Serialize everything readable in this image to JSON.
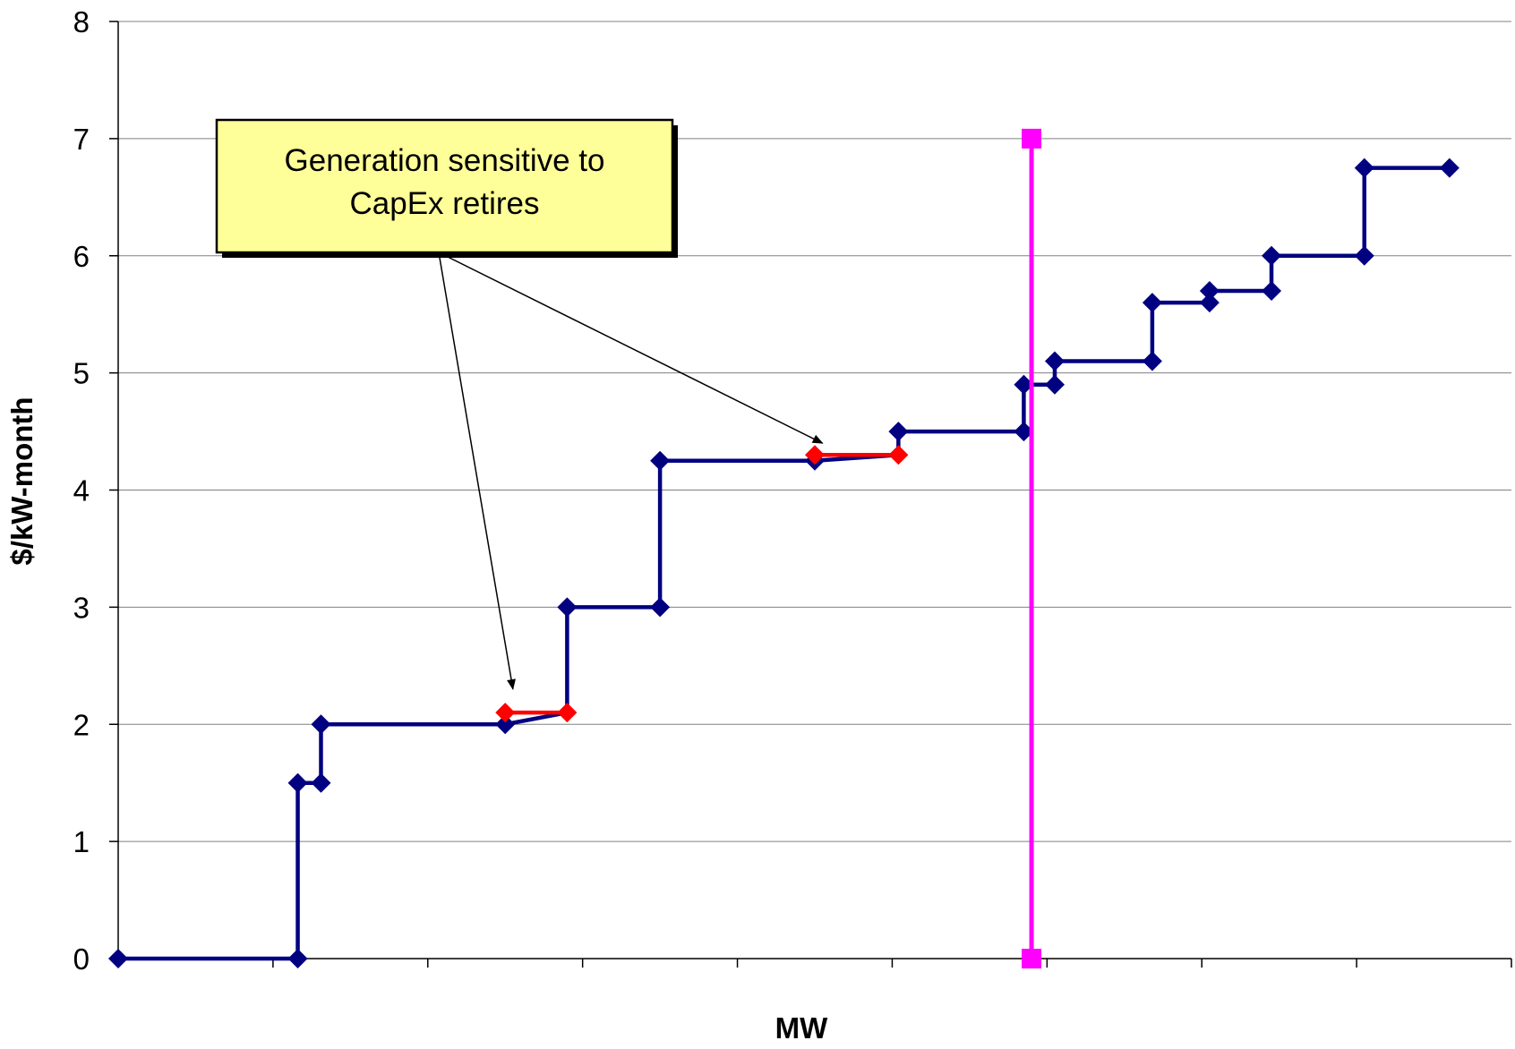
{
  "chart_data": {
    "type": "line",
    "title": "",
    "xlabel": "MW",
    "ylabel": "$/kW-month",
    "ylim": [
      0,
      8
    ],
    "xlim": [
      0,
      9
    ],
    "yticks": [
      0,
      1,
      2,
      3,
      4,
      5,
      6,
      7,
      8
    ],
    "xticks": [
      0,
      1,
      2,
      3,
      4,
      5,
      6,
      7,
      8,
      9
    ],
    "grid": "horizontal",
    "colors": {
      "supply": "#000080",
      "retire": "#ff0000",
      "demand": "#ff00ff",
      "callout_fill": "#ffff99"
    },
    "series": [
      {
        "role": "supply-curve",
        "color": "#000080",
        "x": [
          0,
          1.16,
          1.16,
          1.31,
          1.31,
          2.5,
          2.9,
          2.9,
          3.5,
          3.5,
          4.5,
          5.04,
          5.04,
          5.85,
          5.85,
          6.05,
          6.05,
          6.68,
          6.68,
          7.05,
          7.05,
          7.45,
          7.45,
          8.05,
          8.05,
          8.6
        ],
        "y": [
          0,
          0,
          1.5,
          1.5,
          2,
          2,
          2.1,
          3,
          3,
          4.25,
          4.25,
          4.3,
          4.5,
          4.5,
          4.9,
          4.9,
          5.1,
          5.1,
          5.6,
          5.6,
          5.7,
          5.7,
          6,
          6,
          6.75,
          6.75
        ],
        "markers": [
          0,
          1,
          2,
          3,
          4,
          5,
          7,
          8,
          9,
          10,
          12,
          13,
          14,
          15,
          16,
          17,
          18,
          19,
          20,
          21,
          22,
          23,
          24,
          25
        ]
      },
      {
        "role": "retire-segment-1",
        "color": "#ff0000",
        "x": [
          2.5,
          2.9
        ],
        "y": [
          2.1,
          2.1
        ],
        "markers": [
          0,
          1
        ]
      },
      {
        "role": "retire-segment-2",
        "color": "#ff0000",
        "x": [
          4.5,
          5.04
        ],
        "y": [
          4.3,
          4.3
        ],
        "markers": [
          0,
          1
        ]
      },
      {
        "role": "demand-line",
        "color": "#ff00ff",
        "x": [
          5.9,
          5.9
        ],
        "y": [
          0,
          7
        ],
        "markers": [
          0,
          1
        ]
      }
    ],
    "annotations": [
      {
        "lines": [
          "Generation sensitive to",
          "CapEx retires"
        ],
        "arrow_targets": [
          [
            2.55,
            2.3
          ],
          [
            4.55,
            4.4
          ]
        ]
      }
    ]
  }
}
